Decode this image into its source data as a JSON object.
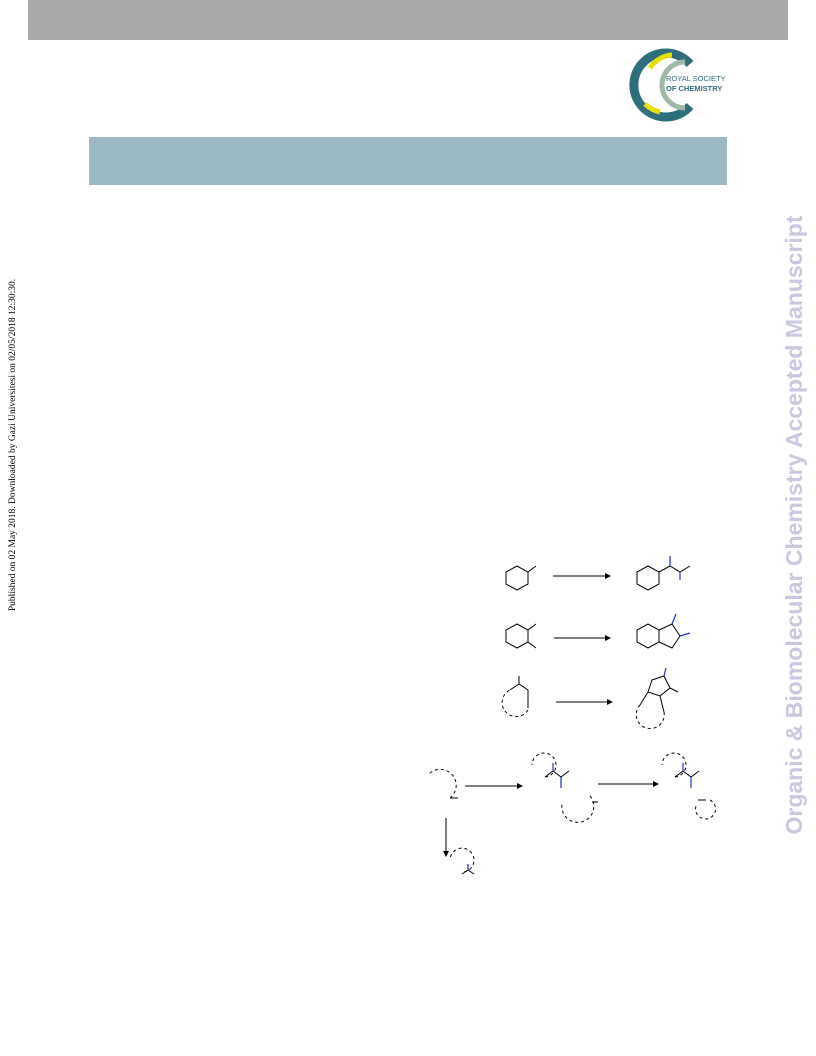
{
  "publisher": {
    "logo_line1": "ROYAL SOCIETY",
    "logo_line2": "OF CHEMISTRY"
  },
  "side_note": "Published on 02 May 2018. Downloaded by Gazi Universitesi on 02/05/2018 12:30:30.",
  "watermark": "Organic & Biomolecular Chemistry Accepted Manuscript"
}
